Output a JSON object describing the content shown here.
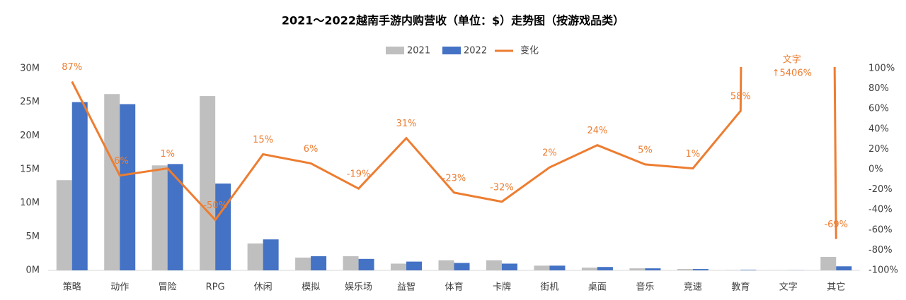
{
  "chart_data": {
    "type": "bar-line",
    "title": "2021～2022越南手游内购营收（单位：$）走势图（按游戏品类）",
    "categories": [
      "策略",
      "动作",
      "冒险",
      "RPG",
      "休闲",
      "模拟",
      "娱乐场",
      "益智",
      "体育",
      "卡牌",
      "街机",
      "桌面",
      "音乐",
      "竞速",
      "教育",
      "文字",
      "其它"
    ],
    "series": [
      {
        "name": "2021",
        "color": "#bfbfbf",
        "values": [
          13.4,
          26.2,
          15.6,
          25.9,
          4.0,
          1.9,
          2.1,
          1.0,
          1.5,
          1.5,
          0.7,
          0.4,
          0.3,
          0.2,
          0.05,
          0.02,
          2.0
        ]
      },
      {
        "name": "2022",
        "color": "#4472c4",
        "values": [
          25.0,
          24.7,
          15.8,
          12.9,
          4.6,
          2.1,
          1.7,
          1.3,
          1.1,
          1.0,
          0.7,
          0.5,
          0.3,
          0.2,
          0.08,
          0.02,
          0.6
        ]
      },
      {
        "name": "变化",
        "color": "#ed7d31",
        "type": "line",
        "axis": "y2",
        "values": [
          87,
          -6,
          1,
          -50,
          15,
          6,
          -19,
          31,
          -23,
          -32,
          2,
          24,
          5,
          1,
          58,
          5406,
          -69
        ],
        "value_labels": [
          "87%",
          "-6%",
          "1%",
          "-50%",
          "15%",
          "6%",
          "-19%",
          "31%",
          "-23%",
          "-32%",
          "2%",
          "24%",
          "5%",
          "1%",
          "58%",
          "↑5406%",
          "-69%"
        ]
      }
    ],
    "ylim": [
      0,
      30
    ],
    "yticks": [
      {
        "value": 0,
        "label": "0M"
      },
      {
        "value": 5,
        "label": "5M"
      },
      {
        "value": 10,
        "label": "10M"
      },
      {
        "value": 15,
        "label": "15M"
      },
      {
        "value": 20,
        "label": "20M"
      },
      {
        "value": 25,
        "label": "25M"
      },
      {
        "value": 30,
        "label": "30M"
      }
    ],
    "y2lim": [
      -100,
      100
    ],
    "y2ticks": [
      {
        "value": -100,
        "label": "-100%"
      },
      {
        "value": -80,
        "label": "-80%"
      },
      {
        "value": -60,
        "label": "-60%"
      },
      {
        "value": -40,
        "label": "-40%"
      },
      {
        "value": -20,
        "label": "-20%"
      },
      {
        "value": 0,
        "label": "0%"
      },
      {
        "value": 20,
        "label": "20%"
      },
      {
        "value": 40,
        "label": "40%"
      },
      {
        "value": 60,
        "label": "60%"
      },
      {
        "value": 80,
        "label": "80%"
      },
      {
        "value": 100,
        "label": "100%"
      }
    ],
    "legend": "top"
  }
}
